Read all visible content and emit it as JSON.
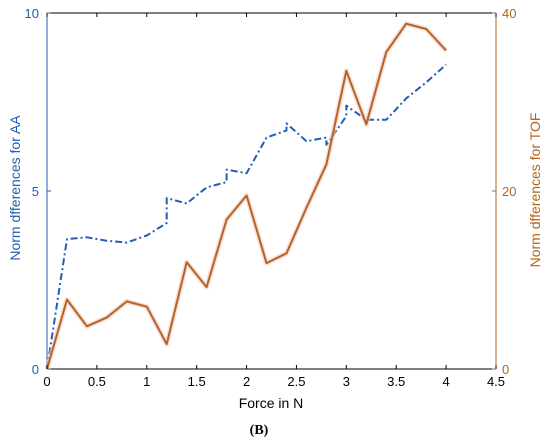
{
  "panel_label": "(B)",
  "chart_data": {
    "type": "line",
    "xlabel": "Force in N",
    "ylabel_left": "Norm dfferences for AA",
    "ylabel_right": "Norm dfferences for TOF",
    "xlim": [
      0,
      4.5
    ],
    "ylim_left": [
      0,
      10
    ],
    "ylim_right": [
      0,
      40
    ],
    "x_ticks": [
      "0",
      "0.5",
      "1",
      "1.5",
      "2",
      "2.5",
      "3",
      "3.5",
      "4",
      "4.5"
    ],
    "y_ticks_left": [
      "0",
      "5",
      "10"
    ],
    "y_ticks_right": [
      "0",
      "20",
      "40"
    ],
    "grid": false,
    "legend": "none",
    "colors": {
      "aa": "#1f5fb4",
      "tof": "#b5651d",
      "axis": "#000000"
    },
    "series": [
      {
        "axis": "left",
        "style": "dash-dot",
        "x": [
          0,
          0.2,
          0.4,
          0.6,
          0.8,
          1.0,
          1.2,
          1.2,
          1.4,
          1.6,
          1.8,
          1.8,
          2.0,
          2.2,
          2.4,
          2.4,
          2.6,
          2.8,
          2.8,
          3.0,
          3.0,
          3.2,
          3.4,
          3.6,
          3.8,
          4.0
        ],
        "y": [
          0,
          3.65,
          3.7,
          3.6,
          3.55,
          3.75,
          4.1,
          4.8,
          4.65,
          5.1,
          5.25,
          5.6,
          5.5,
          6.5,
          6.7,
          6.9,
          6.4,
          6.5,
          6.3,
          7.1,
          7.4,
          7.0,
          7.0,
          7.6,
          8.05,
          8.55
        ]
      },
      {
        "axis": "right",
        "style": "solid",
        "x": [
          0,
          0.2,
          0.4,
          0.6,
          0.8,
          1.0,
          1.2,
          1.4,
          1.6,
          1.8,
          2.0,
          2.2,
          2.4,
          2.6,
          2.8,
          3.0,
          3.2,
          3.4,
          3.6,
          3.8,
          4.0
        ],
        "y": [
          0,
          7.8,
          4.8,
          5.8,
          7.6,
          7.0,
          2.8,
          12.0,
          9.2,
          16.8,
          19.5,
          11.9,
          13.0,
          18.1,
          23.0,
          33.5,
          27.5,
          35.6,
          38.8,
          38.2,
          35.8
        ]
      }
    ]
  }
}
